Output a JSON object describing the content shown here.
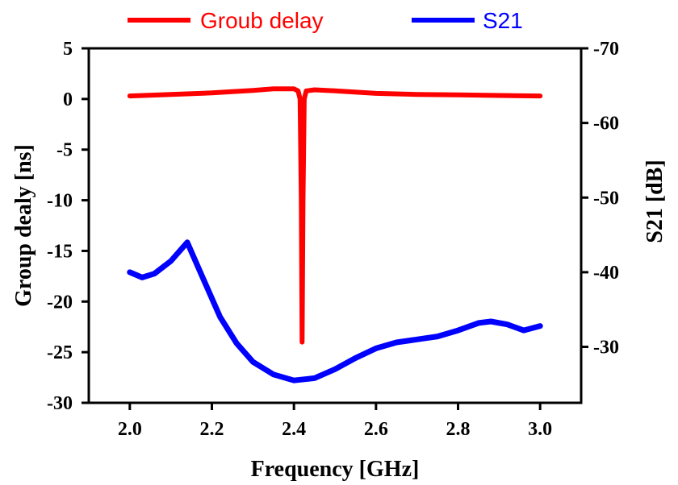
{
  "chart_data": {
    "type": "line",
    "xlabel": "Frequency [GHz]",
    "ylabel_left": "Group dealy  [ns]",
    "ylabel_right": "S21 [dB]",
    "xlim": [
      1.9,
      3.1
    ],
    "ylim_left": [
      -30,
      5
    ],
    "ylim_right": [
      -22.5,
      -70
    ],
    "x_ticks": [
      "2.0",
      "2.2",
      "2.4",
      "2.6",
      "2.8",
      "3.0"
    ],
    "left_ticks": [
      "5",
      "0",
      "-5",
      "-10",
      "-15",
      "-20",
      "-25",
      "-30"
    ],
    "right_ticks": [
      "-70",
      "-60",
      "-50",
      "-40",
      "-30"
    ],
    "legend_position": "top",
    "series": [
      {
        "name": "Groub delay",
        "axis": "left",
        "color": "#ff0000",
        "x": [
          2.0,
          2.1,
          2.2,
          2.3,
          2.35,
          2.4,
          2.41,
          2.415,
          2.418,
          2.42,
          2.422,
          2.425,
          2.43,
          2.45,
          2.5,
          2.6,
          2.7,
          2.8,
          2.9,
          3.0
        ],
        "values": [
          0.3,
          0.45,
          0.6,
          0.85,
          1.0,
          1.0,
          0.8,
          0.0,
          -10.0,
          -24.0,
          -10.0,
          0.0,
          0.8,
          0.9,
          0.8,
          0.55,
          0.45,
          0.4,
          0.35,
          0.3
        ]
      },
      {
        "name": "S21",
        "axis": "right",
        "color": "#0000ff",
        "x": [
          2.0,
          2.03,
          2.06,
          2.1,
          2.14,
          2.18,
          2.22,
          2.26,
          2.3,
          2.35,
          2.4,
          2.45,
          2.5,
          2.55,
          2.6,
          2.65,
          2.7,
          2.75,
          2.8,
          2.85,
          2.88,
          2.92,
          2.96,
          3.0
        ],
        "values": [
          -40.0,
          -39.3,
          -39.8,
          -41.5,
          -44.0,
          -39.0,
          -34.0,
          -30.5,
          -28.0,
          -26.3,
          -25.5,
          -25.8,
          -27.0,
          -28.5,
          -29.8,
          -30.6,
          -31.0,
          -31.4,
          -32.2,
          -33.2,
          -33.4,
          -33.0,
          -32.2,
          -32.8
        ]
      }
    ]
  }
}
